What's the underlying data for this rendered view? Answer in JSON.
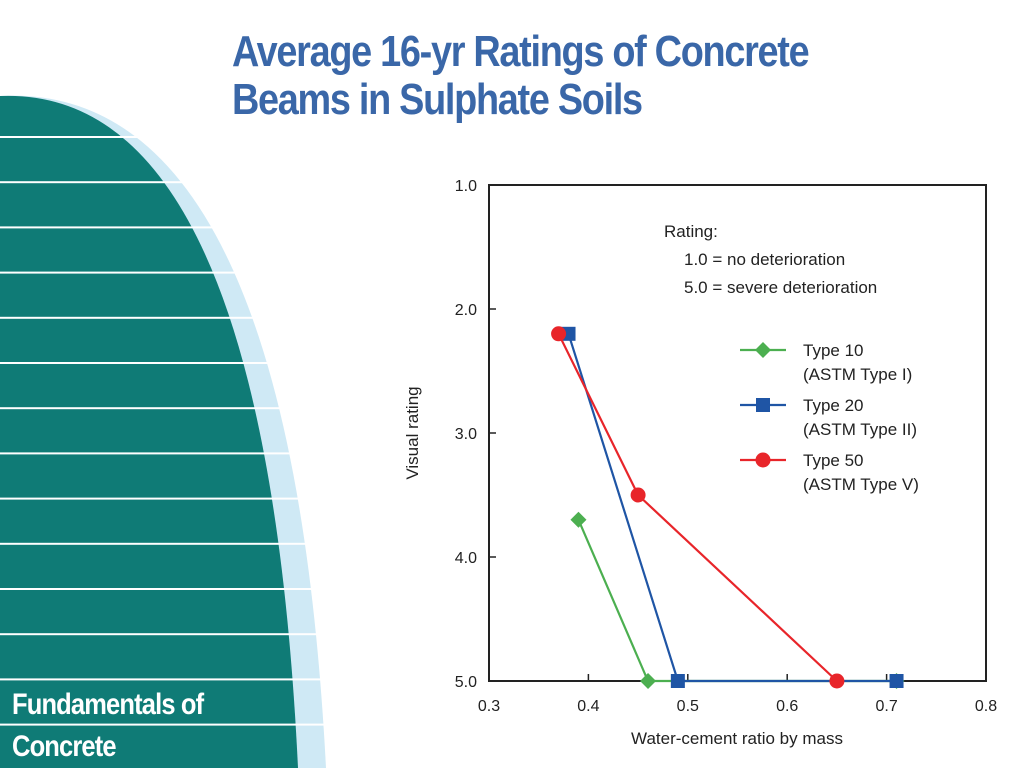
{
  "slide": {
    "title_line1": "Average 16-yr Ratings of Concrete",
    "title_line2": "Beams in Sulphate Soils",
    "footer_line1": "Fundamentals of",
    "footer_line2": "Concrete",
    "colors": {
      "title": "#3a67a8",
      "band": "#0f7b76",
      "stripe": "#ffffff",
      "light": "#cfe9f5"
    }
  },
  "chart_data": {
    "type": "line",
    "xlabel": "Water-cement ratio by mass",
    "ylabel": "Visual rating",
    "xlim": [
      0.3,
      0.8
    ],
    "ylim": [
      1.0,
      5.0
    ],
    "y_inverted": true,
    "x_ticks": [
      "0.3",
      "0.4",
      "0.5",
      "0.6",
      "0.7",
      "0.8"
    ],
    "y_ticks": [
      "1.0",
      "2.0",
      "3.0",
      "4.0",
      "5.0"
    ],
    "note_title": "Rating:",
    "note_lines": [
      "1.0 = no deterioration",
      "5.0 = severe deterioration"
    ],
    "legend_position": "right",
    "series": [
      {
        "name": "Type 10",
        "name2": "(ASTM Type I)",
        "color": "#4caf50",
        "marker": "diamond",
        "points": [
          [
            0.39,
            3.7
          ],
          [
            0.46,
            5.0
          ],
          [
            0.71,
            5.0
          ]
        ]
      },
      {
        "name": "Type 20",
        "name2": "(ASTM Type II)",
        "color": "#1f55a5",
        "marker": "square",
        "points": [
          [
            0.38,
            2.2
          ],
          [
            0.49,
            5.0
          ],
          [
            0.71,
            5.0
          ]
        ]
      },
      {
        "name": "Type 50",
        "name2": "(ASTM Type V)",
        "color": "#e8252a",
        "marker": "circle",
        "points": [
          [
            0.37,
            2.2
          ],
          [
            0.45,
            3.5
          ],
          [
            0.65,
            5.0
          ]
        ]
      }
    ]
  }
}
